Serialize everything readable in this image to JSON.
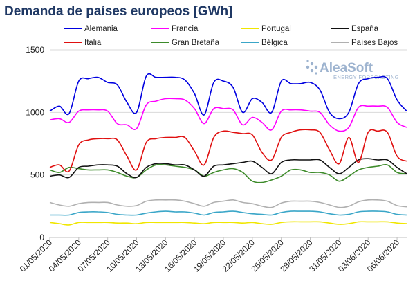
{
  "chart_data": {
    "type": "line",
    "title": "Demanda de países europeos [GWh]",
    "xlabel": "",
    "ylabel": "",
    "ylim": [
      0,
      1500
    ],
    "yticks": [
      "0",
      "500",
      "1000",
      "1500"
    ],
    "xticks": [
      "01/05/2020",
      "04/05/2020",
      "07/05/2020",
      "10/05/2020",
      "13/05/2020",
      "16/05/2020",
      "19/05/2020",
      "22/05/2020",
      "25/05/2020",
      "28/05/2020",
      "31/05/2020",
      "03/06/2020",
      "06/06/2020"
    ],
    "grid": true,
    "legend_position": "top",
    "x_start": "01/05/2020",
    "x_end": "07/06/2020",
    "series": [
      {
        "name": "Alemania",
        "color": "#0000e0",
        "values": [
          1010,
          1050,
          990,
          1250,
          1270,
          1280,
          1240,
          1220,
          1080,
          1000,
          1290,
          1280,
          1280,
          1280,
          1260,
          1150,
          980,
          1240,
          1250,
          1200,
          1000,
          1110,
          1080,
          1000,
          1250,
          1230,
          1230,
          1240,
          1180,
          1000,
          950,
          1000,
          1230,
          1270,
          1280,
          1270,
          1100,
          1010
        ]
      },
      {
        "name": "Francia",
        "color": "#ff00ff",
        "values": [
          940,
          950,
          920,
          1010,
          1020,
          1020,
          1010,
          910,
          900,
          870,
          1060,
          1090,
          1110,
          1110,
          1100,
          1030,
          910,
          1030,
          1030,
          1020,
          900,
          960,
          920,
          860,
          1010,
          1020,
          1020,
          1010,
          1000,
          900,
          850,
          880,
          1040,
          1050,
          1050,
          1040,
          920,
          880
        ]
      },
      {
        "name": "Portugal",
        "color": "#f0e600",
        "values": [
          120,
          110,
          100,
          120,
          120,
          120,
          120,
          115,
          115,
          110,
          120,
          120,
          120,
          120,
          120,
          115,
          110,
          120,
          120,
          120,
          115,
          120,
          110,
          105,
          120,
          125,
          125,
          125,
          125,
          115,
          105,
          110,
          125,
          125,
          125,
          125,
          115,
          110
        ]
      },
      {
        "name": "España",
        "color": "#111111",
        "values": [
          490,
          500,
          480,
          560,
          570,
          580,
          580,
          570,
          510,
          480,
          560,
          590,
          590,
          580,
          580,
          540,
          490,
          570,
          580,
          590,
          600,
          610,
          560,
          510,
          600,
          620,
          620,
          620,
          620,
          560,
          510,
          560,
          620,
          630,
          620,
          620,
          560,
          510
        ]
      },
      {
        "name": "Italia",
        "color": "#e01010",
        "values": [
          560,
          580,
          530,
          740,
          780,
          790,
          790,
          780,
          650,
          540,
          760,
          790,
          800,
          800,
          800,
          690,
          580,
          800,
          850,
          840,
          830,
          820,
          680,
          620,
          800,
          840,
          860,
          860,
          840,
          700,
          590,
          800,
          600,
          840,
          850,
          840,
          650,
          610
        ]
      },
      {
        "name": "Gran Bretaña",
        "color": "#3d8b2a",
        "values": [
          540,
          520,
          560,
          550,
          540,
          540,
          540,
          520,
          490,
          480,
          540,
          580,
          580,
          570,
          560,
          540,
          490,
          520,
          540,
          550,
          520,
          450,
          440,
          460,
          490,
          540,
          540,
          520,
          520,
          500,
          450,
          490,
          540,
          560,
          570,
          580,
          520,
          510
        ]
      },
      {
        "name": "Bélgica",
        "color": "#3aa6c8",
        "values": [
          180,
          180,
          180,
          200,
          205,
          205,
          200,
          185,
          180,
          180,
          195,
          205,
          210,
          205,
          205,
          195,
          180,
          200,
          205,
          210,
          200,
          190,
          185,
          180,
          200,
          210,
          210,
          210,
          205,
          190,
          180,
          185,
          205,
          210,
          210,
          205,
          185,
          180
        ]
      },
      {
        "name": "Países Bajos",
        "color": "#b0b0b0",
        "values": [
          280,
          260,
          250,
          270,
          280,
          280,
          280,
          260,
          250,
          255,
          290,
          300,
          300,
          300,
          290,
          270,
          250,
          280,
          290,
          300,
          280,
          270,
          250,
          240,
          275,
          290,
          290,
          290,
          280,
          260,
          240,
          250,
          285,
          300,
          300,
          290,
          255,
          245
        ]
      }
    ]
  },
  "logo": {
    "main": "AleaSoft",
    "sub": "ENERGY FORECASTING"
  }
}
